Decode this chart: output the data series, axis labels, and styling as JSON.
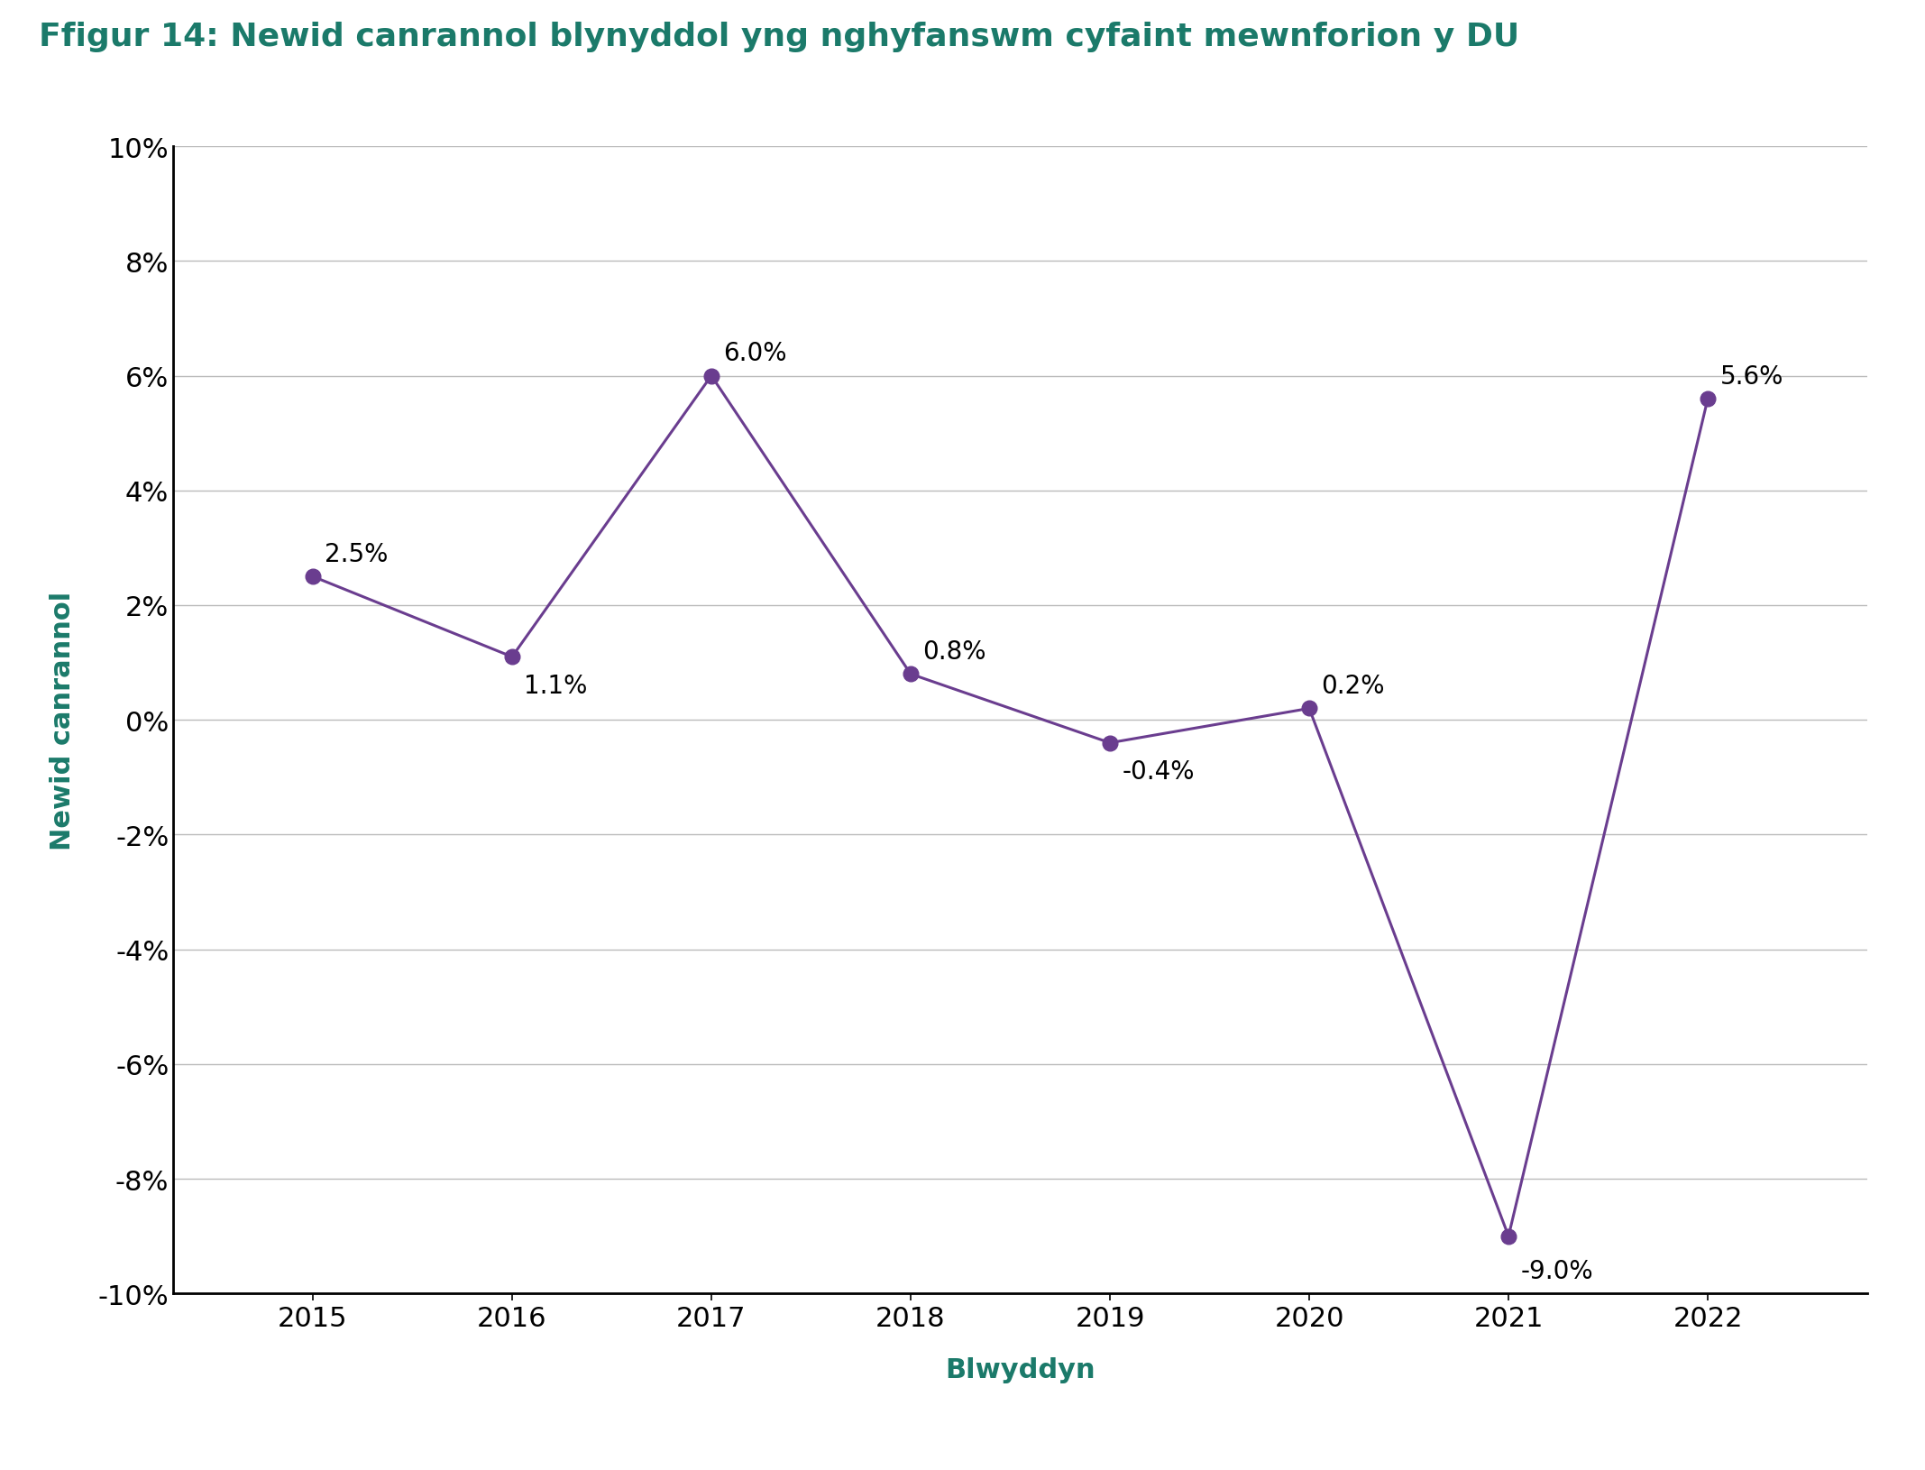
{
  "title": "Ffigur 14: Newid canrannol blynyddol yng nghyfanswm cyfaint mewnforion y DU",
  "xlabel": "Blwyddyn",
  "ylabel": "Newid canrannol",
  "years": [
    2015,
    2016,
    2017,
    2018,
    2019,
    2020,
    2021,
    2022
  ],
  "values": [
    2.5,
    1.1,
    6.0,
    0.8,
    -0.4,
    0.2,
    -9.0,
    5.6
  ],
  "labels": [
    "2.5%",
    "1.1%",
    "6.0%",
    "0.8%",
    "-0.4%",
    "0.2%",
    "-9.0%",
    "5.6%"
  ],
  "label_offsets_x": [
    0.06,
    0.06,
    0.06,
    0.06,
    0.06,
    0.06,
    0.06,
    0.06
  ],
  "label_offsets_y": [
    0.4,
    -0.5,
    0.4,
    0.4,
    -0.5,
    0.4,
    -0.6,
    0.4
  ],
  "line_color": "#6A3D8F",
  "marker_color": "#6A3D8F",
  "title_color": "#1B7A6A",
  "xlabel_color": "#1B7A6A",
  "ylabel_color": "#1B7A6A",
  "tick_label_color": "#000000",
  "annotation_color": "#000000",
  "grid_color": "#BBBBBB",
  "background_color": "#FFFFFF",
  "spine_color": "#000000",
  "ylim": [
    -10,
    10
  ],
  "yticks": [
    -10,
    -8,
    -6,
    -4,
    -2,
    0,
    2,
    4,
    6,
    8,
    10
  ],
  "xlim_left": 2014.3,
  "xlim_right": 2022.8,
  "title_fontsize": 26,
  "label_fontsize": 22,
  "tick_fontsize": 22,
  "annotation_fontsize": 20,
  "marker_size": 12,
  "line_width": 2.2
}
